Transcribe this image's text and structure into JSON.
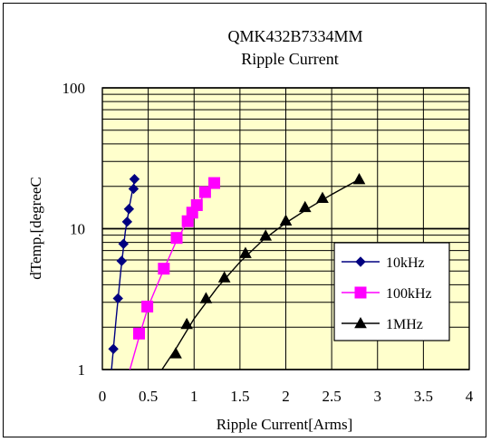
{
  "chart_data": {
    "type": "line",
    "title": "QMK432B7334MM",
    "subtitle": "Ripple Current",
    "xlabel": "Ripple Current[Arms]",
    "ylabel": "dTemp.[degreeC",
    "xlim": [
      0,
      4
    ],
    "ylim": [
      1,
      100
    ],
    "y_scale": "log",
    "grid": true,
    "legend_position": "bottom-right",
    "x_ticks": [
      "0",
      "0.5",
      "1",
      "1.5",
      "2",
      "2.5",
      "3",
      "3.5",
      "4"
    ],
    "y_ticks": [
      "1",
      "10",
      "100"
    ],
    "plot_background": "#ffffcc",
    "series": [
      {
        "name": "10kHz",
        "color": "#000080",
        "marker": "diamond",
        "points": [
          [
            0.12,
            1.4
          ],
          [
            0.17,
            3.2
          ],
          [
            0.21,
            5.9
          ],
          [
            0.23,
            7.8
          ],
          [
            0.27,
            11.2
          ],
          [
            0.29,
            13.8
          ],
          [
            0.34,
            19.2
          ],
          [
            0.35,
            22.5
          ]
        ],
        "fit": [
          [
            0.1,
            1.0
          ],
          [
            0.15,
            2.3
          ],
          [
            0.2,
            5.0
          ],
          [
            0.25,
            9.5
          ],
          [
            0.3,
            15.0
          ],
          [
            0.36,
            24.0
          ]
        ]
      },
      {
        "name": "100kHz",
        "color": "#ff00ff",
        "marker": "square",
        "points": [
          [
            0.4,
            1.8
          ],
          [
            0.49,
            2.8
          ],
          [
            0.67,
            5.2
          ],
          [
            0.81,
            8.6
          ],
          [
            0.93,
            11.3
          ],
          [
            0.98,
            13.0
          ],
          [
            1.03,
            14.7
          ],
          [
            1.12,
            18.2
          ],
          [
            1.22,
            21.1
          ]
        ],
        "fit": [
          [
            0.3,
            1.0
          ],
          [
            0.4,
            1.7
          ],
          [
            0.5,
            2.8
          ],
          [
            0.65,
            4.8
          ],
          [
            0.8,
            8.0
          ],
          [
            0.95,
            12.0
          ],
          [
            1.1,
            17.0
          ],
          [
            1.24,
            22.0
          ]
        ]
      },
      {
        "name": "1MHz",
        "color": "#000000",
        "marker": "triangle",
        "points": [
          [
            0.8,
            1.3
          ],
          [
            0.92,
            2.1
          ],
          [
            1.13,
            3.2
          ],
          [
            1.33,
            4.5
          ],
          [
            1.56,
            6.7
          ],
          [
            1.78,
            8.9
          ],
          [
            2.0,
            11.4
          ],
          [
            2.21,
            14.2
          ],
          [
            2.4,
            16.5
          ],
          [
            2.8,
            22.4
          ]
        ],
        "fit": [
          [
            0.65,
            1.0
          ],
          [
            0.8,
            1.4
          ],
          [
            1.0,
            2.3
          ],
          [
            1.25,
            3.8
          ],
          [
            1.5,
            5.8
          ],
          [
            1.75,
            8.3
          ],
          [
            2.0,
            11.0
          ],
          [
            2.25,
            14.0
          ],
          [
            2.5,
            17.5
          ],
          [
            2.8,
            22.4
          ]
        ]
      }
    ]
  }
}
